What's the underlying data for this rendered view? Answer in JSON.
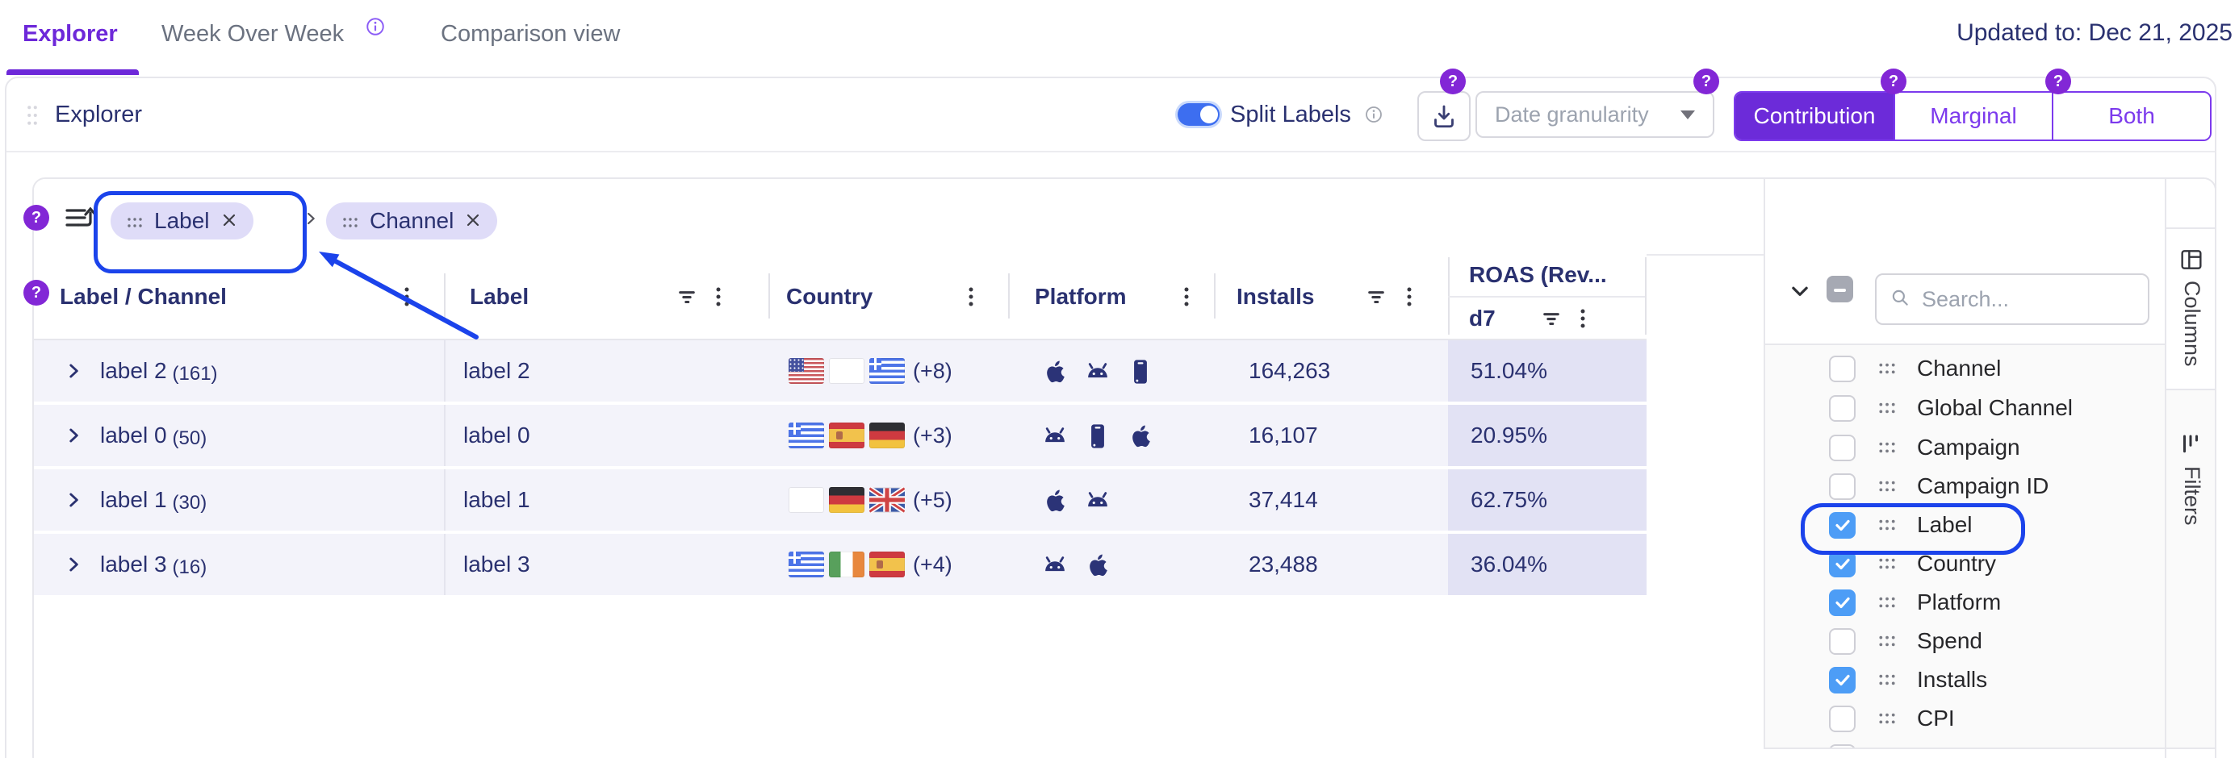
{
  "tabs": {
    "explorer": "Explorer",
    "week_over_week": "Week Over Week",
    "comparison": "Comparison view"
  },
  "updated_to": "Updated to: Dec 21, 2025",
  "toolbar": {
    "title": "Explorer",
    "split_labels_label": "Split Labels",
    "split_labels_on": true,
    "date_granularity_placeholder": "Date granularity",
    "modes": [
      "Contribution",
      "Marginal",
      "Both"
    ],
    "active_mode": "Contribution"
  },
  "pills": {
    "items": [
      "Label",
      "Channel"
    ]
  },
  "table": {
    "headers": {
      "hierarchy": "Label / Channel",
      "label": "Label",
      "country": "Country",
      "platform": "Platform",
      "installs": "Installs",
      "roas": "ROAS (Rev...",
      "roas_sub": "d7"
    },
    "rows": [
      {
        "name": "label 2",
        "count": "(161)",
        "label": "label 2",
        "countries": [
          "us",
          "blank",
          "greece"
        ],
        "more": "(+8)",
        "platforms": [
          "apple",
          "android",
          "phone"
        ],
        "installs": "164,263",
        "roas": "51.04%"
      },
      {
        "name": "label 0",
        "count": "(50)",
        "label": "label 0",
        "countries": [
          "greece",
          "spain",
          "germany"
        ],
        "more": "(+3)",
        "platforms": [
          "android",
          "phone",
          "apple"
        ],
        "installs": "16,107",
        "roas": "20.95%"
      },
      {
        "name": "label 1",
        "count": "(30)",
        "label": "label 1",
        "countries": [
          "blank",
          "germany",
          "uk"
        ],
        "more": "(+5)",
        "platforms": [
          "apple",
          "android"
        ],
        "installs": "37,414",
        "roas": "62.75%"
      },
      {
        "name": "label 3",
        "count": "(16)",
        "label": "label 3",
        "countries": [
          "greece",
          "ireland",
          "spain"
        ],
        "more": "(+4)",
        "platforms": [
          "android",
          "apple"
        ],
        "installs": "23,488",
        "roas": "36.04%"
      }
    ]
  },
  "sidebar": {
    "search_placeholder": "Search...",
    "items": [
      {
        "label": "Channel",
        "checked": false
      },
      {
        "label": "Global Channel",
        "checked": false
      },
      {
        "label": "Campaign",
        "checked": false
      },
      {
        "label": "Campaign ID",
        "checked": false
      },
      {
        "label": "Label",
        "checked": true,
        "highlighted": true
      },
      {
        "label": "Country",
        "checked": true
      },
      {
        "label": "Platform",
        "checked": true
      },
      {
        "label": "Spend",
        "checked": false
      },
      {
        "label": "Installs",
        "checked": true
      },
      {
        "label": "CPI",
        "checked": false
      },
      {
        "label": "",
        "checked": false
      }
    ],
    "tabs": [
      {
        "label": "Columns",
        "active": true
      },
      {
        "label": "Filters",
        "active": false
      }
    ]
  },
  "colors": {
    "accent_purple": "#6D28D9",
    "badge_purple": "#8227D6",
    "navy_text": "#2A3170",
    "annotation_blue": "#1B43EB",
    "toggle_blue": "#3D6EF0",
    "checkbox_blue": "#4D9DF6",
    "row_bg": "#F3F3FA",
    "roas_cell_bg": "#E2E2F4",
    "chip_bg": "#DFDCF8"
  }
}
